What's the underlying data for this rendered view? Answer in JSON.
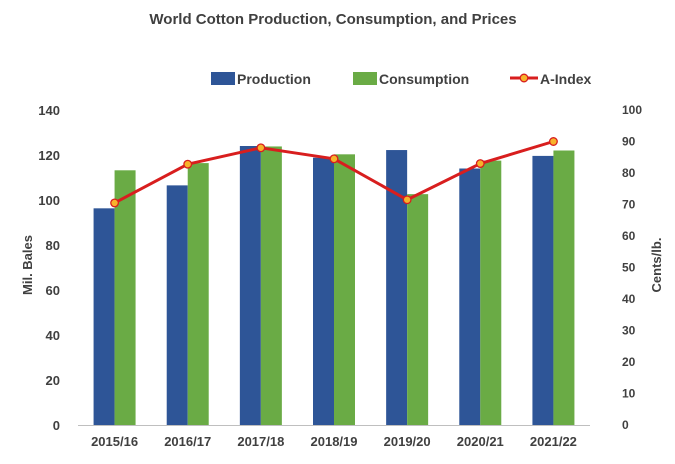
{
  "chart_data": {
    "type": "bar",
    "title": "World Cotton Production, Consumption, and Prices",
    "categories": [
      "2015/16",
      "2016/17",
      "2017/18",
      "2018/19",
      "2019/20",
      "2020/21",
      "2021/22"
    ],
    "series": [
      {
        "name": "Production",
        "type": "bar",
        "axis": "left",
        "color": "#2E5597",
        "values": [
          96.3,
          106.5,
          124.0,
          118.8,
          122.2,
          114.0,
          119.6
        ]
      },
      {
        "name": "Consumption",
        "type": "bar",
        "axis": "left",
        "color": "#6AAB45",
        "values": [
          113.2,
          116.4,
          123.8,
          120.3,
          102.6,
          117.5,
          122.0
        ]
      },
      {
        "name": "A-Index",
        "type": "line",
        "axis": "right",
        "color": "#D81E1E",
        "marker_color": "#F7B32B",
        "values": [
          70.5,
          82.8,
          88.0,
          84.5,
          71.5,
          83.0,
          90.0
        ]
      }
    ],
    "ylabel": "Mil. Bales",
    "ylim": [
      0,
      140
    ],
    "yticks": [
      "0",
      "20",
      "40",
      "60",
      "80",
      "100",
      "120",
      "140"
    ],
    "y2label": "Cents/lb.",
    "y2lim": [
      0,
      100
    ],
    "y2ticks": [
      "0",
      "10",
      "20",
      "30",
      "40",
      "50",
      "60",
      "70",
      "80",
      "90",
      "100"
    ],
    "legend_position": "top",
    "grid": false
  }
}
